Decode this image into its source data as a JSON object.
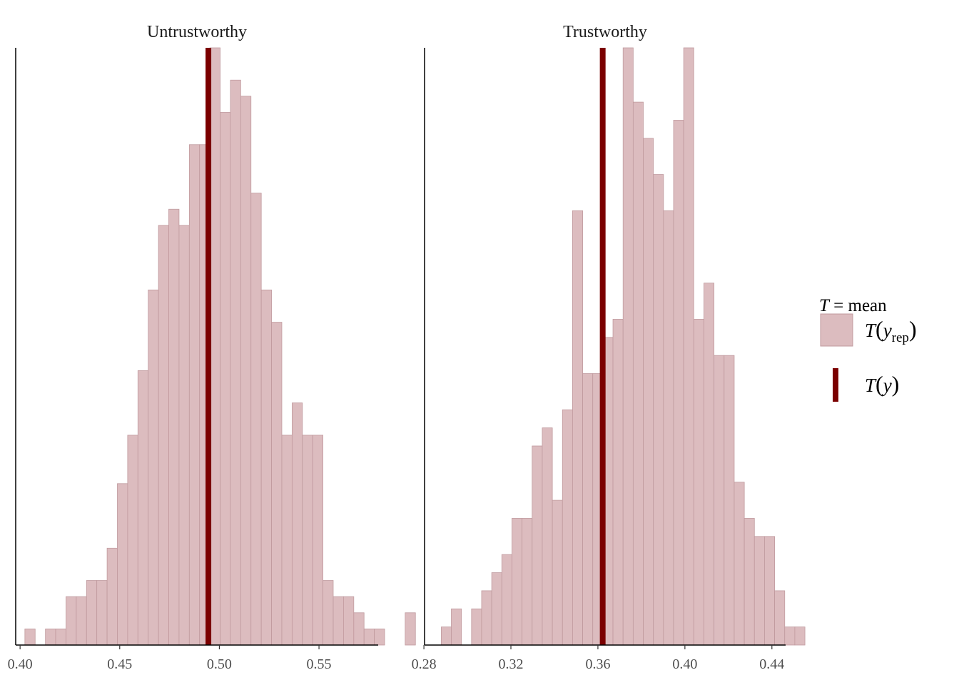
{
  "chart_data": [
    {
      "type": "bar",
      "title": "Untrustworthy",
      "xticks": [
        "0.40",
        "0.45",
        "0.50",
        "0.55"
      ],
      "xtick_values": [
        0.4,
        0.45,
        0.5,
        0.55
      ],
      "xlim": [
        0.3978,
        0.5797
      ],
      "bin_width": 0.005158,
      "bin_start": 0.4024,
      "counts": [
        1,
        0,
        1,
        1,
        3,
        3,
        4,
        4,
        6,
        10,
        13,
        17,
        22,
        26,
        27,
        26,
        31,
        31,
        37,
        33,
        35,
        34,
        28,
        22,
        20,
        13,
        15,
        13,
        13,
        4,
        3,
        3,
        2,
        1,
        1,
        0,
        0,
        2
      ],
      "observed": 0.4945,
      "ylim": [
        0,
        37
      ]
    },
    {
      "type": "bar",
      "title": "Trustworthy",
      "xticks": [
        "0.28",
        "0.32",
        "0.36",
        "0.40",
        "0.44"
      ],
      "xtick_values": [
        0.28,
        0.32,
        0.36,
        0.4,
        0.44
      ],
      "xlim": [
        0.2803,
        0.4463
      ],
      "bin_width": 0.004645,
      "bin_start": 0.28796,
      "counts": [
        1,
        2,
        0,
        2,
        3,
        4,
        5,
        7,
        7,
        11,
        12,
        8,
        13,
        24,
        15,
        15,
        17,
        18,
        33,
        30,
        28,
        26,
        24,
        29,
        33,
        18,
        20,
        16,
        16,
        9,
        7,
        6,
        6,
        3,
        1,
        1
      ],
      "observed": 0.3622,
      "ylim": [
        0,
        33
      ]
    }
  ],
  "legend": {
    "title_var": "T",
    "title_rest": " = mean",
    "items": [
      {
        "type": "bar",
        "label": "T",
        "arg": "y",
        "sub": "rep"
      },
      {
        "type": "line",
        "label": "T",
        "arg": "y",
        "sub": ""
      }
    ]
  },
  "colors": {
    "bar_fill": "#dcbcbf",
    "bar_stroke": "#c09a9e",
    "observed": "#7b0000",
    "axis": "#000000"
  }
}
